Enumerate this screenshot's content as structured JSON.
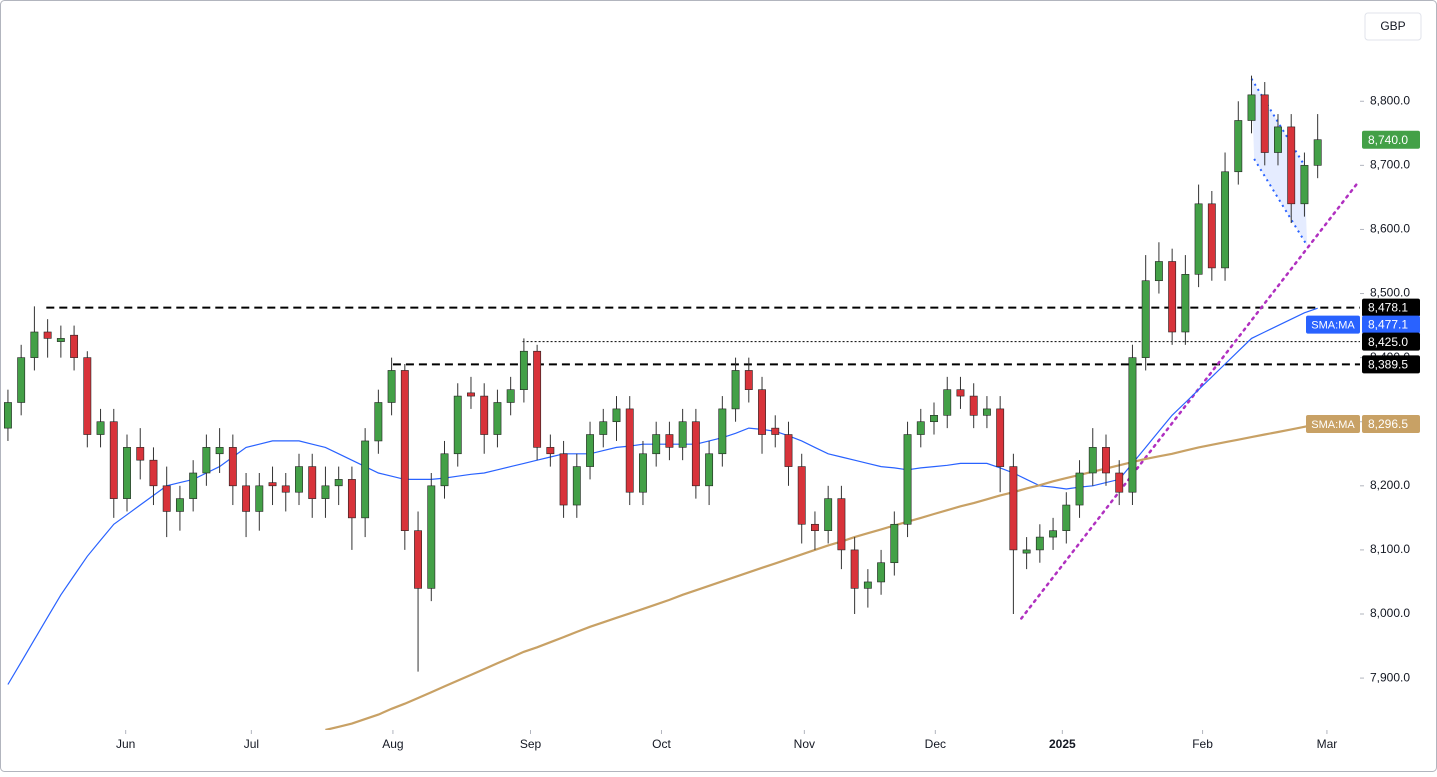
{
  "chart_data": {
    "type": "candlestick",
    "currency": "GBP",
    "xlim": [
      -0.6,
      102.2
    ],
    "xticks": [
      {
        "value": 8.9,
        "label": "Jun"
      },
      {
        "value": 18.4,
        "label": "Jul"
      },
      {
        "value": 29.1,
        "label": "Aug"
      },
      {
        "value": 39.5,
        "label": "Sep"
      },
      {
        "value": 49.4,
        "label": "Oct"
      },
      {
        "value": 60.2,
        "label": "Nov"
      },
      {
        "value": 70.1,
        "label": "Dec"
      },
      {
        "value": 79.7,
        "label": "2025",
        "bold": true
      },
      {
        "value": 90.3,
        "label": "Feb"
      },
      {
        "value": 99.7,
        "label": "Mar"
      }
    ],
    "ylim": [
      7819,
      8958
    ],
    "yticks": [
      {
        "value": 7900,
        "label": "7,900.0"
      },
      {
        "value": 8000,
        "label": "8,000.0"
      },
      {
        "value": 8100,
        "label": "8,100.0"
      },
      {
        "value": 8200,
        "label": "8,200.0"
      },
      {
        "value": 8300,
        "label": "8,300.0"
      },
      {
        "value": 8400,
        "label": "8,400.0"
      },
      {
        "value": 8500,
        "label": "8,500.0"
      },
      {
        "value": 8600,
        "label": "8,600.0"
      },
      {
        "value": 8700,
        "label": "8,700.0"
      },
      {
        "value": 8800,
        "label": "8,800.0"
      }
    ],
    "up_color": "#43a047",
    "down_color": "#d8333a",
    "open": [
      8290,
      8330,
      8400,
      8440,
      8425,
      8435,
      8400,
      8280,
      8300,
      8180,
      8260,
      8240,
      8200,
      8160,
      8180,
      8220,
      8250,
      8260,
      8200,
      8160,
      8205,
      8200,
      8190,
      8230,
      8180,
      8200,
      8210,
      8150,
      8270,
      8330,
      8380,
      8130,
      8040,
      8200,
      8250,
      8345,
      8340,
      8280,
      8330,
      8350,
      8410,
      8260,
      8250,
      8170,
      8230,
      8280,
      8300,
      8320,
      8190,
      8250,
      8280,
      8260,
      8300,
      8200,
      8250,
      8320,
      8380,
      8350,
      8290,
      8280,
      8230,
      8140,
      8130,
      8180,
      8100,
      8040,
      8050,
      8080,
      8140,
      8280,
      8300,
      8310,
      8350,
      8340,
      8310,
      8320,
      8230,
      8095,
      8100,
      8120,
      8130,
      8170,
      8220,
      8260,
      8220,
      8190,
      8400,
      8520,
      8550,
      8440,
      8530,
      8640,
      8540,
      8690,
      8770,
      8810,
      8720,
      8760,
      8640,
      8700
    ],
    "high": [
      8350,
      8420,
      8480,
      8460,
      8450,
      8450,
      8410,
      8320,
      8320,
      8280,
      8290,
      8260,
      8230,
      8200,
      8240,
      8280,
      8290,
      8280,
      8220,
      8220,
      8230,
      8220,
      8250,
      8250,
      8230,
      8230,
      8230,
      8290,
      8350,
      8400,
      8390,
      8160,
      8220,
      8270,
      8360,
      8370,
      8360,
      8350,
      8370,
      8430,
      8420,
      8280,
      8270,
      8250,
      8300,
      8320,
      8340,
      8340,
      8270,
      8300,
      8300,
      8320,
      8320,
      8270,
      8340,
      8400,
      8400,
      8370,
      8310,
      8300,
      8250,
      8160,
      8200,
      8200,
      8120,
      8070,
      8100,
      8160,
      8300,
      8320,
      8330,
      8370,
      8370,
      8360,
      8340,
      8340,
      8250,
      8120,
      8140,
      8150,
      8190,
      8240,
      8290,
      8280,
      8240,
      8420,
      8560,
      8580,
      8570,
      8560,
      8670,
      8660,
      8720,
      8800,
      8840,
      8830,
      8780,
      8780,
      8720,
      8780
    ],
    "low": [
      8270,
      8310,
      8380,
      8400,
      8400,
      8380,
      8260,
      8260,
      8150,
      8160,
      8210,
      8170,
      8120,
      8130,
      8160,
      8200,
      8220,
      8170,
      8120,
      8130,
      8170,
      8160,
      8170,
      8150,
      8150,
      8170,
      8100,
      8120,
      8250,
      8310,
      8100,
      7910,
      8020,
      8180,
      8230,
      8320,
      8250,
      8260,
      8310,
      8330,
      8240,
      8230,
      8150,
      8150,
      8210,
      8260,
      8270,
      8170,
      8170,
      8230,
      8240,
      8240,
      8180,
      8170,
      8230,
      8300,
      8330,
      8250,
      8260,
      8200,
      8110,
      8100,
      8110,
      8070,
      8000,
      8010,
      8030,
      8060,
      8120,
      8260,
      8280,
      8290,
      8320,
      8290,
      8290,
      8190,
      8000,
      8070,
      8080,
      8100,
      8110,
      8150,
      8200,
      8200,
      8170,
      8170,
      8380,
      8500,
      8420,
      8420,
      8510,
      8520,
      8520,
      8670,
      8750,
      8700,
      8700,
      8610,
      8620,
      8680
    ],
    "close": [
      8330,
      8400,
      8440,
      8430,
      8430,
      8400,
      8280,
      8300,
      8180,
      8260,
      8240,
      8200,
      8160,
      8180,
      8220,
      8260,
      8260,
      8200,
      8160,
      8200,
      8200,
      8190,
      8230,
      8180,
      8200,
      8210,
      8150,
      8270,
      8330,
      8380,
      8130,
      8040,
      8200,
      8250,
      8340,
      8340,
      8280,
      8330,
      8350,
      8410,
      8260,
      8250,
      8170,
      8230,
      8280,
      8300,
      8320,
      8190,
      8250,
      8280,
      8260,
      8300,
      8200,
      8250,
      8320,
      8380,
      8350,
      8280,
      8280,
      8230,
      8140,
      8130,
      8180,
      8100,
      8040,
      8050,
      8080,
      8140,
      8280,
      8300,
      8310,
      8350,
      8340,
      8310,
      8320,
      8230,
      8100,
      8100,
      8120,
      8130,
      8170,
      8220,
      8260,
      8220,
      8190,
      8400,
      8520,
      8550,
      8440,
      8530,
      8640,
      8540,
      8690,
      8770,
      8810,
      8720,
      8760,
      8640,
      8700,
      8740
    ],
    "last_price_label": "8,740.0",
    "series": [
      {
        "name": "SMA:MA",
        "color": "#2962ff",
        "last_label": "8,477.1",
        "values": [
          7890,
          7925,
          7960,
          7995,
          8030,
          8060,
          8090,
          8115,
          8140,
          8155,
          8170,
          8185,
          8200,
          8205,
          8210,
          8220,
          8230,
          8245,
          8260,
          8265,
          8270,
          8270,
          8270,
          8265,
          8260,
          8250,
          8240,
          8230,
          8220,
          8215,
          8210,
          8210,
          8210,
          8212,
          8215,
          8218,
          8220,
          8225,
          8230,
          8235,
          8240,
          8245,
          8250,
          8250,
          8250,
          8255,
          8260,
          8262,
          8265,
          8265,
          8265,
          8265,
          8265,
          8270,
          8275,
          8282,
          8290,
          8288,
          8285,
          8278,
          8270,
          8260,
          8250,
          8245,
          8240,
          8235,
          8230,
          8228,
          8225,
          8228,
          8230,
          8232,
          8235,
          8235,
          8235,
          8228,
          8220,
          8210,
          8200,
          8198,
          8195,
          8198,
          8200,
          8205,
          8210,
          8235,
          8260,
          8285,
          8310,
          8330,
          8350,
          8370,
          8390,
          8410,
          8430,
          8440,
          8450,
          8460,
          8470,
          8477.1
        ]
      },
      {
        "name": "SMA:MA",
        "color": "#c8a165",
        "last_label": "8,296.5",
        "values": [
          null,
          null,
          null,
          null,
          null,
          null,
          null,
          null,
          null,
          null,
          null,
          null,
          null,
          null,
          null,
          null,
          null,
          null,
          null,
          null,
          null,
          null,
          null,
          null,
          7819,
          7824,
          7829,
          7836,
          7843,
          7852,
          7860,
          7869,
          7878,
          7887,
          7896,
          7905,
          7914,
          7923,
          7932,
          7941,
          7948,
          7956,
          7964,
          7972,
          7980,
          7987,
          7994,
          8001,
          8008,
          8015,
          8022,
          8030,
          8037,
          8044,
          8051,
          8058,
          8065,
          8072,
          8079,
          8086,
          8093,
          8100,
          8107,
          8113,
          8120,
          8126,
          8132,
          8138,
          8144,
          8150,
          8156,
          8162,
          8168,
          8173,
          8179,
          8185,
          8190,
          8196,
          8201,
          8207,
          8212,
          8217,
          8222,
          8227,
          8232,
          8237,
          8242,
          8246,
          8250,
          8255,
          8260,
          8264,
          8268,
          8272,
          8276,
          8280,
          8284,
          8288,
          8292,
          8296.5
        ]
      }
    ],
    "levels": [
      {
        "value": 8478.1,
        "label": "8,478.1",
        "start": 2.9,
        "style": "dashed"
      },
      {
        "value": 8425.0,
        "label": "8,425.0",
        "start": 38.9,
        "style": "dotted"
      },
      {
        "value": 8389.5,
        "label": "8,389.5",
        "start": 29.1,
        "style": "dashed"
      }
    ],
    "trendline": {
      "color": "#b030c0",
      "points": [
        [
          76.6,
          7993
        ],
        [
          102.0,
          8672
        ]
      ]
    },
    "channel": {
      "color": "#2962ff",
      "upper": [
        [
          94.0,
          8835
        ],
        [
          98.0,
          8700
        ]
      ],
      "lower": [
        [
          94.2,
          8710
        ],
        [
          98.2,
          8575
        ]
      ]
    }
  }
}
